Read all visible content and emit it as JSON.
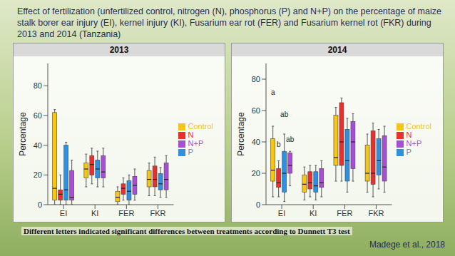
{
  "slide": {
    "title": "Effect of fertilization (unfertilized control, nitrogen (N), phosphorus (P) and N+P) on the percentage of maize stalk borer ear injury (EI), kernel injury (KI), Fusarium ear rot (FER) and Fusarium kernel rot (FKR) during 2013 and 2014 (Tanzania)",
    "note": "Different letters indicated significant differences between treatments according to Dunnett T3 test",
    "source": "Madege et al., 2018"
  },
  "chart_data": [
    {
      "type": "box",
      "title": "2013",
      "y_label": "Percentage",
      "categories": [
        "EI",
        "KI",
        "FER",
        "FKR"
      ],
      "ylim": [
        0,
        95
      ],
      "yticks": [
        0,
        20,
        40,
        60,
        80
      ],
      "legend": "right",
      "series": [
        {
          "name": "Control",
          "color": "#f5c518",
          "values": [
            {
              "min": 0,
              "q1": 3,
              "median": 11,
              "q3": 62,
              "max": 64
            },
            {
              "min": 12,
              "q1": 18,
              "median": 24,
              "q3": 28,
              "max": 34
            },
            {
              "min": 0,
              "q1": 2,
              "median": 5,
              "q3": 9,
              "max": 12
            },
            {
              "min": 6,
              "q1": 12,
              "median": 17,
              "q3": 23,
              "max": 28
            }
          ]
        },
        {
          "name": "N",
          "color": "#e8312f",
          "values": [
            {
              "min": 0,
              "q1": 3,
              "median": 7,
              "q3": 10,
              "max": 20
            },
            {
              "min": 14,
              "q1": 20,
              "median": 27,
              "q3": 33,
              "max": 38
            },
            {
              "min": 3,
              "q1": 7,
              "median": 11,
              "q3": 14,
              "max": 18
            },
            {
              "min": 6,
              "q1": 12,
              "median": 17,
              "q3": 26,
              "max": 32
            }
          ]
        },
        {
          "name": "P",
          "color": "#2f8fe0",
          "values": [
            {
              "min": 0,
              "q1": 3,
              "median": 10,
              "q3": 40,
              "max": 42
            },
            {
              "min": 12,
              "q1": 18,
              "median": 24,
              "q3": 30,
              "max": 36
            },
            {
              "min": 0,
              "q1": 3,
              "median": 9,
              "q3": 16,
              "max": 20
            },
            {
              "min": 5,
              "q1": 10,
              "median": 14,
              "q3": 21,
              "max": 25
            }
          ]
        },
        {
          "name": "N+P",
          "color": "#a64fd6",
          "values": [
            {
              "min": 0,
              "q1": 3,
              "median": 5,
              "q3": 23,
              "max": 30
            },
            {
              "min": 12,
              "q1": 18,
              "median": 22,
              "q3": 33,
              "max": 38
            },
            {
              "min": 3,
              "q1": 7,
              "median": 13,
              "q3": 19,
              "max": 24
            },
            {
              "min": 5,
              "q1": 10,
              "median": 17,
              "q3": 28,
              "max": 33
            }
          ]
        }
      ],
      "annotations": []
    },
    {
      "type": "box",
      "title": "2014",
      "y_label": "Percentage",
      "categories": [
        "EI",
        "KI",
        "FER",
        "FKR"
      ],
      "ylim": [
        0,
        90
      ],
      "yticks": [
        0,
        20,
        40,
        60,
        80
      ],
      "legend": "right",
      "series": [
        {
          "name": "Control",
          "color": "#f5c518",
          "values": [
            {
              "min": 5,
              "q1": 15,
              "median": 22,
              "q3": 42,
              "max": 50
            },
            {
              "min": 3,
              "q1": 8,
              "median": 13,
              "q3": 19,
              "max": 24
            },
            {
              "min": 15,
              "q1": 25,
              "median": 30,
              "q3": 57,
              "max": 62
            },
            {
              "min": 8,
              "q1": 15,
              "median": 20,
              "q3": 38,
              "max": 45
            }
          ]
        },
        {
          "name": "N",
          "color": "#e8312f",
          "values": [
            {
              "min": 5,
              "q1": 11,
              "median": 14,
              "q3": 23,
              "max": 28
            },
            {
              "min": 5,
              "q1": 10,
              "median": 14,
              "q3": 21,
              "max": 25
            },
            {
              "min": 15,
              "q1": 25,
              "median": 40,
              "q3": 65,
              "max": 68
            },
            {
              "min": 5,
              "q1": 13,
              "median": 20,
              "q3": 47,
              "max": 52
            }
          ]
        },
        {
          "name": "P",
          "color": "#2f8fe0",
          "values": [
            {
              "min": 2,
              "q1": 8,
              "median": 20,
              "q3": 34,
              "max": 45
            },
            {
              "min": 3,
              "q1": 8,
              "median": 12,
              "q3": 21,
              "max": 25
            },
            {
              "min": 8,
              "q1": 15,
              "median": 28,
              "q3": 48,
              "max": 55
            },
            {
              "min": 10,
              "q1": 19,
              "median": 28,
              "q3": 42,
              "max": 48
            }
          ]
        },
        {
          "name": "N+P",
          "color": "#a64fd6",
          "values": [
            {
              "min": 12,
              "q1": 20,
              "median": 25,
              "q3": 33,
              "max": 34
            },
            {
              "min": 5,
              "q1": 11,
              "median": 14,
              "q3": 23,
              "max": 28
            },
            {
              "min": 15,
              "q1": 23,
              "median": 40,
              "q3": 53,
              "max": 58
            },
            {
              "min": 8,
              "q1": 15,
              "median": 24,
              "q3": 44,
              "max": 50
            }
          ]
        }
      ],
      "annotations": [
        {
          "text": "a",
          "category": "EI",
          "series": "Control",
          "y": 70
        },
        {
          "text": "b",
          "category": "EI",
          "series": "N",
          "y": 37
        },
        {
          "text": "ab",
          "category": "EI",
          "series": "P",
          "y": 56
        },
        {
          "text": "ab",
          "category": "EI",
          "series": "N+P",
          "y": 40
        }
      ]
    }
  ]
}
